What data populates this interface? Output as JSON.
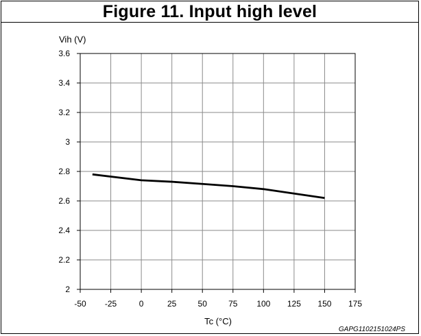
{
  "figure": {
    "title": "Figure 11. Input high level",
    "code": "GAPG1102151024PS"
  },
  "chart_data": {
    "type": "line",
    "title": "Figure 11. Input high level",
    "xlabel": "Tc (°C)",
    "ylabel": "Vih (V)",
    "xlim": [
      -50,
      175
    ],
    "ylim": [
      2,
      3.6
    ],
    "xticks": [
      -50,
      -25,
      0,
      25,
      50,
      75,
      100,
      125,
      150,
      175
    ],
    "yticks": [
      2,
      2.2,
      2.4,
      2.6,
      2.8,
      3,
      3.2,
      3.4,
      3.6
    ],
    "xtick_labels": [
      "-50",
      "-25",
      "0",
      "25",
      "50",
      "75",
      "100",
      "125",
      "150",
      "175"
    ],
    "ytick_labels": [
      "2",
      "2.2",
      "2.4",
      "2.6",
      "2.8",
      "3",
      "3.2",
      "3.4",
      "3.6"
    ],
    "grid": true,
    "legend": "none",
    "line_color": "#000000",
    "series": [
      {
        "x": [
          -40,
          0,
          25,
          50,
          75,
          100,
          125,
          150
        ],
        "y": [
          2.78,
          2.74,
          2.73,
          2.715,
          2.7,
          2.68,
          2.65,
          2.62
        ]
      }
    ]
  }
}
